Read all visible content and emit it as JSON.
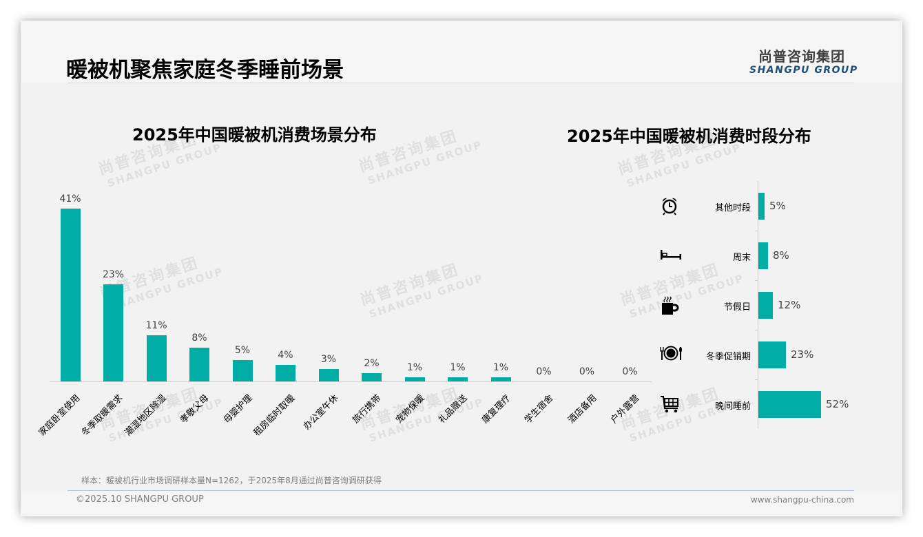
{
  "page": {
    "title": "暖被机聚焦家庭冬季睡前场景",
    "logo_cn": "尚普咨询集团",
    "logo_en": "SHANGPU GROUP",
    "watermark_cn": "尚普咨询集团",
    "watermark_en": "SHANGPU GROUP",
    "footnote": "样本：暖被机行业市场调研样本量N=1262，于2025年8月通过尚普咨询调研获得",
    "copyright": "©2025.10 SHANGPU GROUP",
    "website": "www.shangpu-china.com",
    "accent_color": "#00ADA6"
  },
  "chart_data": [
    {
      "type": "bar",
      "title": "2025年中国暖被机消费场景分布",
      "categories": [
        "家庭卧室使用",
        "冬季取暖需求",
        "潮湿地区除湿",
        "孝敬父母",
        "母婴护理",
        "租房临时取暖",
        "办公室午休",
        "旅行携带",
        "宠物保暖",
        "礼品赠送",
        "康复理疗",
        "学生宿舍",
        "酒店备用",
        "户外露营"
      ],
      "values": [
        41,
        23,
        11,
        8,
        5,
        4,
        3,
        2,
        1,
        1,
        1,
        0,
        0,
        0
      ],
      "value_labels": [
        "41%",
        "23%",
        "11%",
        "8%",
        "5%",
        "4%",
        "3%",
        "2%",
        "1%",
        "1%",
        "1%",
        "0%",
        "0%",
        "0%"
      ],
      "xlabel": "",
      "ylabel": "",
      "ylim": [
        0,
        45
      ],
      "grid": false,
      "legend": "none",
      "color": "#00ADA6",
      "x_tick_rotation": -45
    },
    {
      "type": "bar",
      "orientation": "horizontal",
      "title": "2025年中国暖被机消费时段分布",
      "categories": [
        "其他时段",
        "周末",
        "节假日",
        "冬季促销期",
        "晚间睡前"
      ],
      "values": [
        5,
        8,
        12,
        23,
        52
      ],
      "value_labels": [
        "5%",
        "8%",
        "12%",
        "23%",
        "52%"
      ],
      "icons": [
        "alarm-clock-icon",
        "bed-icon",
        "coffee-cup-icon",
        "dining-plate-icon",
        "shopping-cart-icon"
      ],
      "xlabel": "",
      "ylabel": "",
      "xlim": [
        0,
        60
      ],
      "grid": false,
      "legend": "none",
      "color": "#00ADA6"
    }
  ]
}
